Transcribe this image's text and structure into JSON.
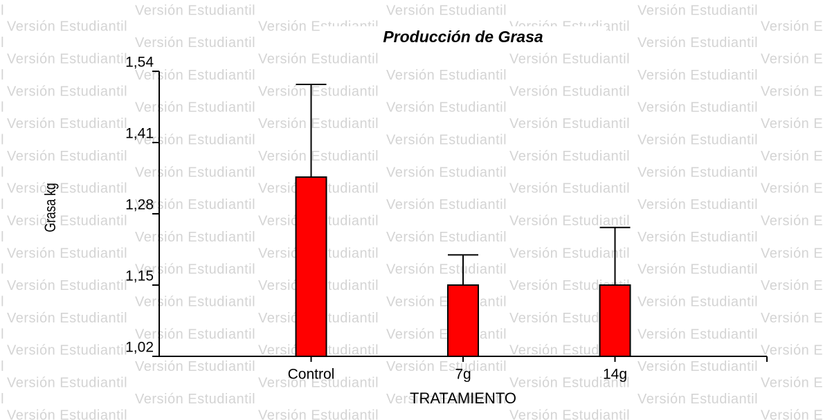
{
  "chart_data": {
    "type": "bar",
    "title": "Producción de Grasa",
    "watermark": "Versión Estudiantil",
    "x_label": "TRATAMIENTO",
    "y_label": "Grasa kg",
    "categories": [
      "Control",
      "7g",
      "14g"
    ],
    "values": [
      1.347,
      1.15,
      1.15
    ],
    "errors": [
      0.169,
      0.055,
      0.105
    ],
    "color": "#ff0000",
    "ylim": [
      1.02,
      1.54
    ],
    "yticks": [
      {
        "value": 1.02,
        "label": "1,02"
      },
      {
        "value": 1.15,
        "label": "1,15"
      },
      {
        "value": 1.28,
        "label": "1,28"
      },
      {
        "value": 1.41,
        "label": "1,41"
      },
      {
        "value": 1.54,
        "label": "1,54"
      }
    ]
  }
}
